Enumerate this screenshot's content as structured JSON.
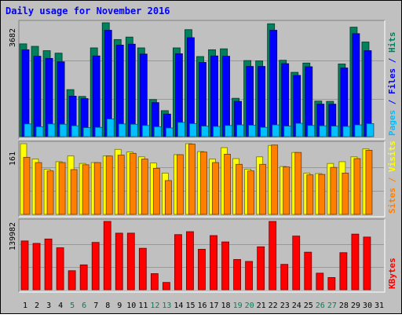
{
  "chart_data": {
    "title": "Daily usage for November 2016",
    "type": "bar",
    "categories": [
      "1",
      "2",
      "3",
      "4",
      "5",
      "6",
      "7",
      "8",
      "9",
      "10",
      "11",
      "12",
      "13",
      "14",
      "15",
      "16",
      "17",
      "18",
      "19",
      "20",
      "21",
      "22",
      "23",
      "24",
      "25",
      "26",
      "27",
      "28",
      "29",
      "30",
      "31"
    ],
    "weekend_days": [
      "5",
      "6",
      "12",
      "13",
      "19",
      "20",
      "26",
      "27"
    ],
    "panels": [
      {
        "name": "hits_files_pages",
        "scale_label": "3682",
        "ylim": [
          0,
          3682
        ],
        "axis_label_parts": [
          {
            "text": "Pages",
            "color": "#00c0ff"
          },
          {
            "text": " / ",
            "color": "#0000ff"
          },
          {
            "text": "Files",
            "color": "#0000ff"
          },
          {
            "text": " / ",
            "color": "#0000ff"
          },
          {
            "text": "Hits",
            "color": "#00805c"
          }
        ],
        "series": [
          {
            "name": "Hits",
            "color": "#00805c",
            "values": [
              3000,
              2920,
              2780,
              2700,
              1520,
              1300,
              2870,
              3682,
              3140,
              3220,
              2870,
              1200,
              840,
              2870,
              3460,
              2590,
              2810,
              2840,
              1240,
              2460,
              2450,
              3650,
              2470,
              2080,
              2380,
              1150,
              1140,
              2350,
              3540,
              3060,
              0
            ]
          },
          {
            "name": "Files",
            "color": "#0000ff",
            "values": [
              2810,
              2600,
              2530,
              2420,
              1310,
              1230,
              2610,
              3440,
              2960,
              2990,
              2670,
              1100,
              730,
              2680,
              3200,
              2400,
              2610,
              2600,
              1140,
              2270,
              2270,
              3440,
              2360,
              1980,
              2260,
              1050,
              1050,
              2220,
              3330,
              2780,
              0
            ]
          },
          {
            "name": "Pages",
            "color": "#00c0ff",
            "values": [
              410,
              320,
              410,
              400,
              350,
              290,
              300,
              570,
              410,
              400,
              360,
              320,
              280,
              460,
              420,
              340,
              330,
              360,
              380,
              370,
              300,
              380,
              340,
              430,
              360,
              350,
              340,
              330,
              380,
              420,
              0
            ]
          }
        ]
      },
      {
        "name": "visits_sites",
        "scale_label": "161",
        "ylim": [
          0,
          161
        ],
        "axis_label_parts": [
          {
            "text": "Sites",
            "color": "#ff8000"
          },
          {
            "text": " / ",
            "color": "#ff8000"
          },
          {
            "text": "Visits",
            "color": "#ffff00"
          }
        ],
        "series": [
          {
            "name": "Visits",
            "color": "#ffff00",
            "values": [
              161,
              126,
              103,
              120,
              133,
              116,
              118,
              133,
              148,
              142,
              131,
              117,
              94,
              136,
              161,
              143,
              126,
              152,
              127,
              103,
              131,
              157,
              109,
              141,
              94,
              93,
              116,
              120,
              131,
              149,
              0
            ]
          },
          {
            "name": "Sites",
            "color": "#ff8000",
            "values": [
              130,
              118,
              99,
              118,
              102,
              113,
              118,
              133,
              135,
              139,
              126,
              105,
              77,
              136,
              160,
              142,
              118,
              137,
              114,
              99,
              114,
              158,
              108,
              141,
              90,
              91,
              107,
              94,
              127,
              146,
              0
            ]
          }
        ]
      },
      {
        "name": "kbytes",
        "scale_label": "139982",
        "ylim": [
          0,
          139982
        ],
        "axis_label_parts": [
          {
            "text": "KBytes",
            "color": "#ff0000"
          }
        ],
        "series": [
          {
            "name": "KBytes",
            "color": "#ff0000",
            "values": [
              100000,
              95000,
              104000,
              86000,
              39000,
              51000,
              97000,
              139982,
              116000,
              116000,
              85000,
              33000,
              15000,
              113000,
              119000,
              83000,
              111000,
              98000,
              62000,
              58000,
              88000,
              139982,
              52000,
              110000,
              77000,
              34000,
              25000,
              76000,
              114000,
              108000,
              0
            ]
          }
        ]
      }
    ]
  }
}
